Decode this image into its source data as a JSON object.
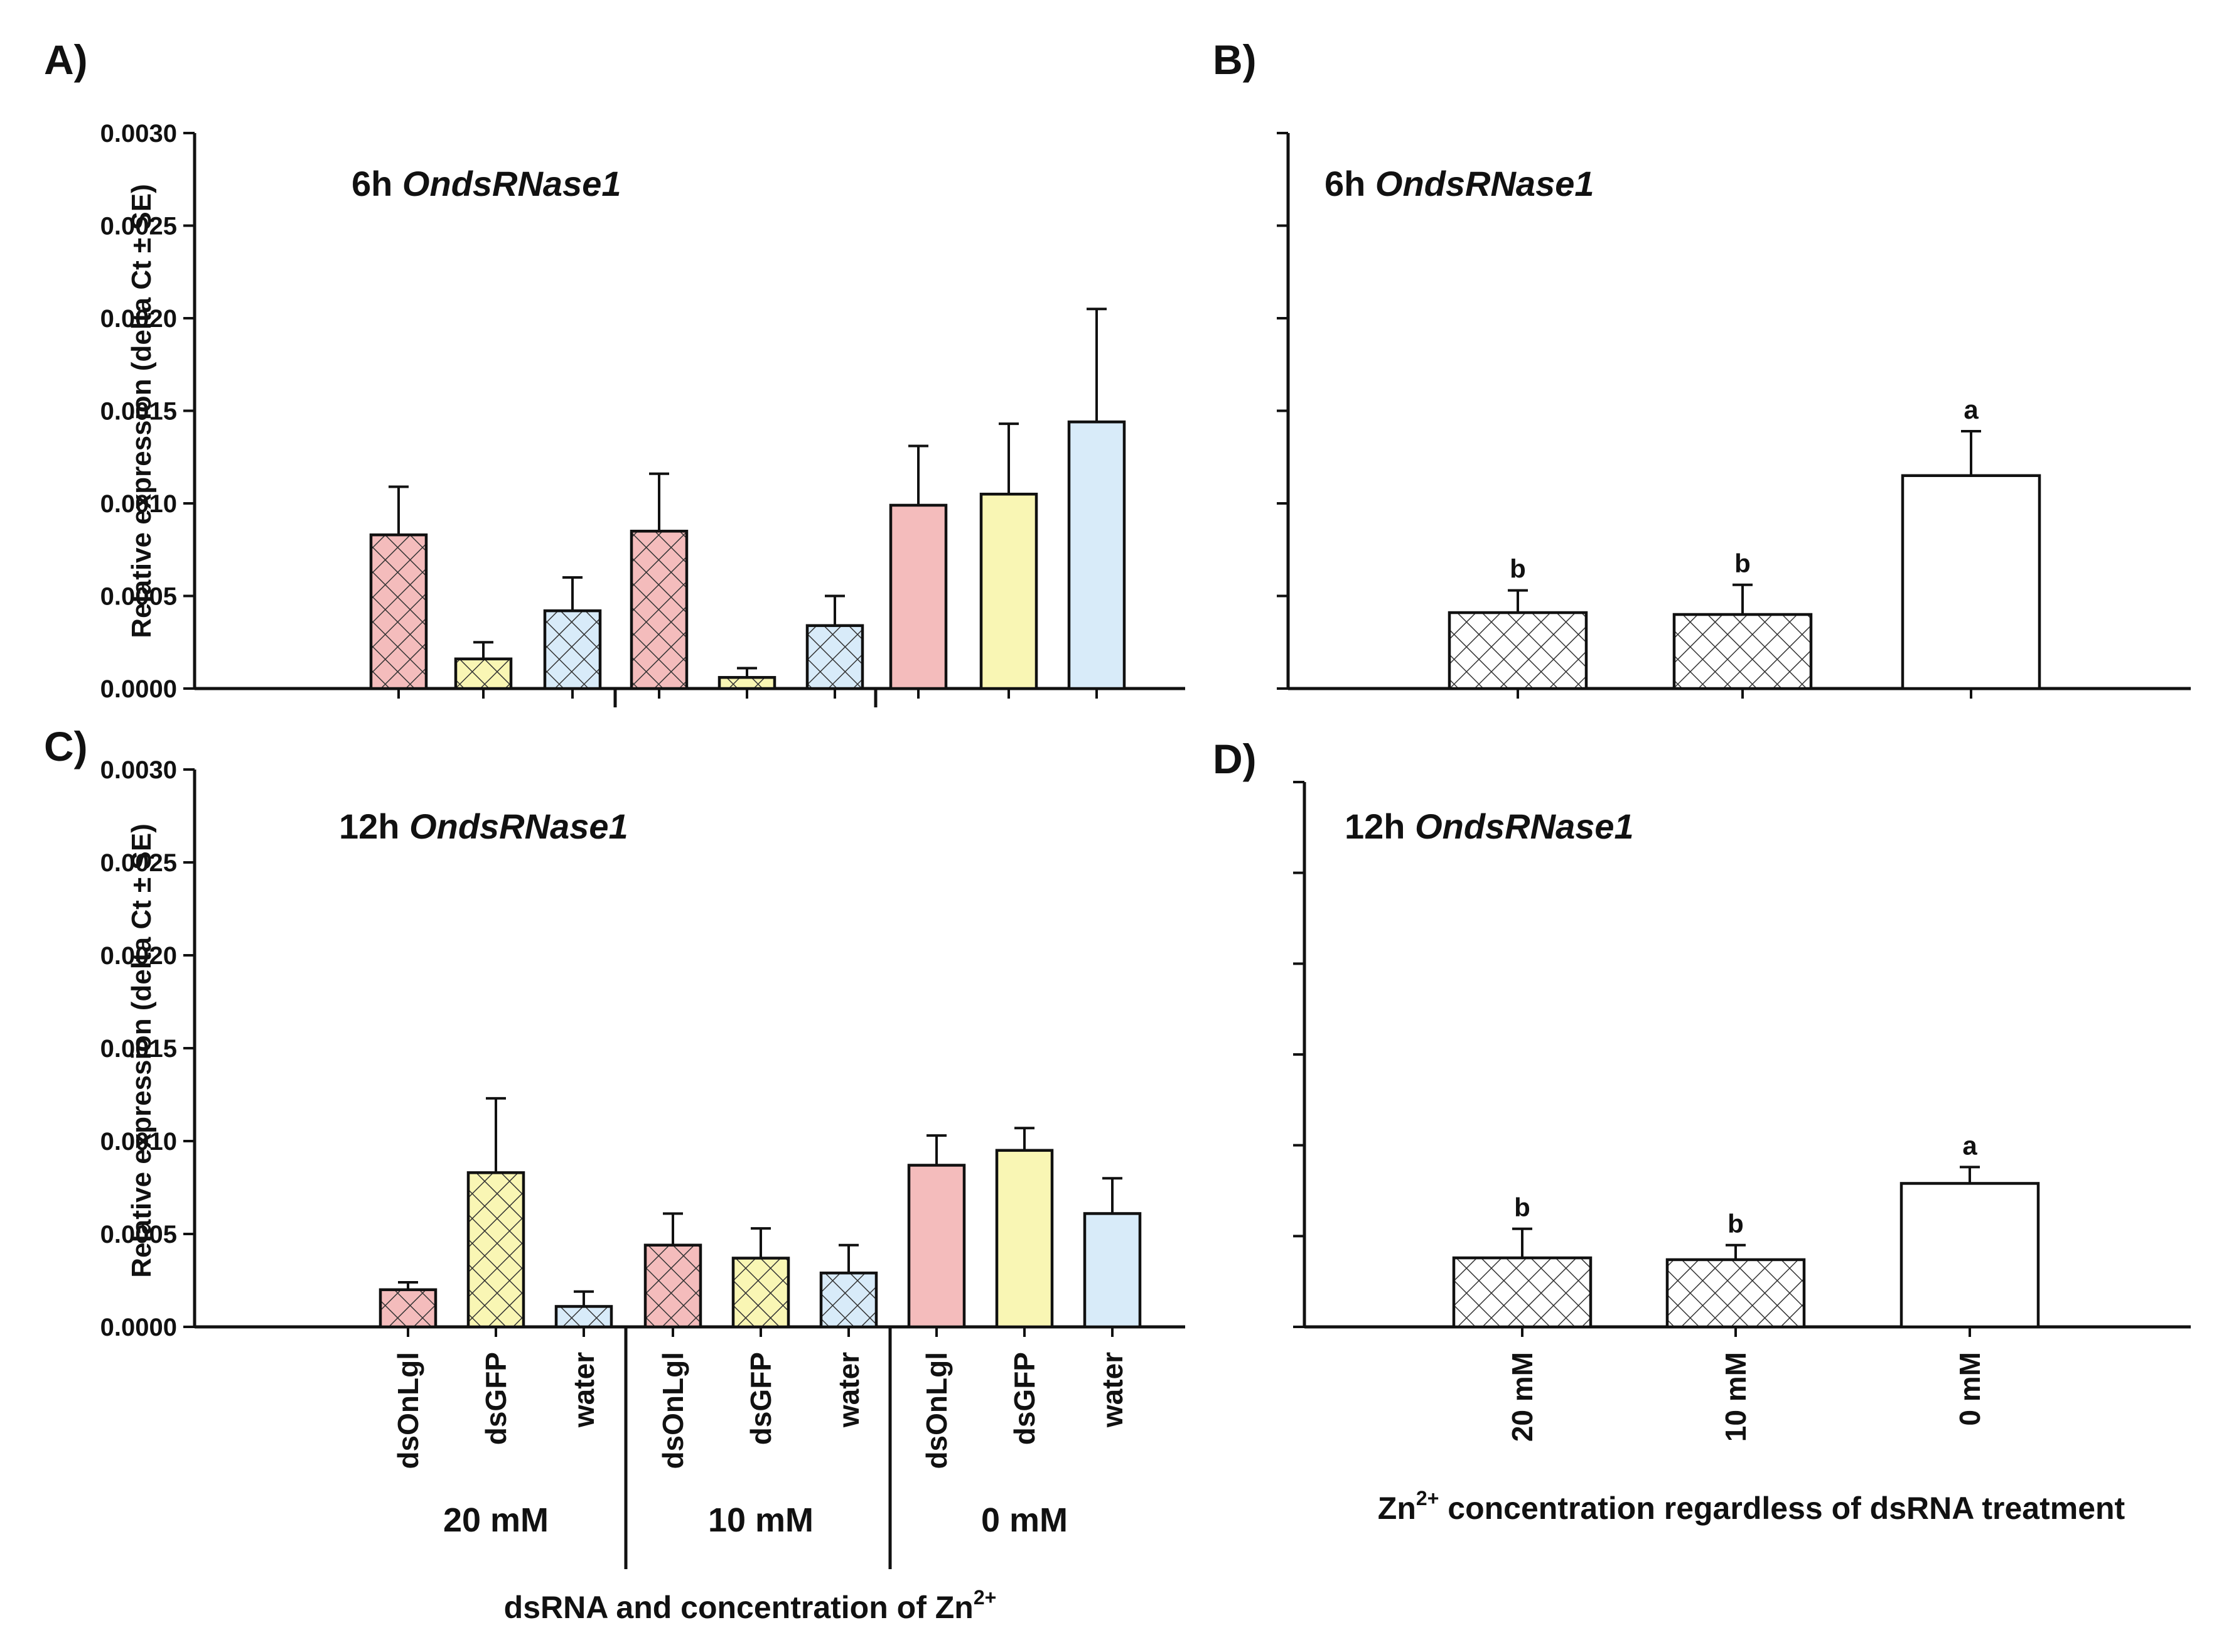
{
  "colors": {
    "dsOnLgl": "#f4bcbc",
    "dsGFP": "#f9f6b4",
    "water": "#d8ebf9",
    "pooled": "#ffffff",
    "hatch_line": "#333333"
  },
  "chart_data": [
    {
      "panel": "A)",
      "type": "bar",
      "title_prefix": "6h ",
      "title_gene": "OndsRNase1",
      "ylabel": "Relative expression (delta Ct ± SE)",
      "ylim": [
        0,
        0.003
      ],
      "yticks": [
        "0.0000",
        "0.0005",
        "0.0010",
        "0.0015",
        "0.0020",
        "0.0025",
        "0.0030"
      ],
      "categories": [
        "dsOnLgl",
        "dsGFP",
        "water",
        "dsOnLgl",
        "dsGFP",
        "water",
        "dsOnLgl",
        "dsGFP",
        "water"
      ],
      "groups": [
        "20 mM",
        "10 mM",
        "0 mM"
      ],
      "values": [
        0.00083,
        0.00016,
        0.00042,
        0.00085,
        6e-05,
        0.00034,
        0.00099,
        0.00105,
        0.00144
      ],
      "errors": [
        0.00026,
        9e-05,
        0.00018,
        0.00031,
        5e-05,
        0.00016,
        0.00032,
        0.00038,
        0.00061
      ],
      "hatched": [
        true,
        true,
        true,
        true,
        true,
        true,
        false,
        false,
        false
      ],
      "show_category_labels": false,
      "show_group_labels": false,
      "xlabel": ""
    },
    {
      "panel": "B)",
      "type": "bar",
      "title_prefix": "6h ",
      "title_gene": "OndsRNase1",
      "ylim": [
        0,
        0.003
      ],
      "categories": [
        "20 mM",
        "10 mM",
        "0 mM"
      ],
      "values": [
        0.00041,
        0.0004,
        0.00115
      ],
      "errors": [
        0.00012,
        0.00016,
        0.00024
      ],
      "significance": [
        "b",
        "b",
        "a"
      ],
      "hatched": [
        true,
        true,
        false
      ],
      "show_category_labels": false,
      "xlabel": ""
    },
    {
      "panel": "C)",
      "type": "bar",
      "title_prefix": "12h ",
      "title_gene": "OndsRNase1",
      "ylabel": "Relative expression (delta Ct ± SE)",
      "ylim": [
        0,
        0.003
      ],
      "yticks": [
        "0.0000",
        "0.0005",
        "0.0010",
        "0.0015",
        "0.0020",
        "0.0025",
        "0.0030"
      ],
      "categories": [
        "dsOnLgl",
        "dsGFP",
        "water",
        "dsOnLgl",
        "dsGFP",
        "water",
        "dsOnLgl",
        "dsGFP",
        "water"
      ],
      "groups": [
        "20 mM",
        "10 mM",
        "0 mM"
      ],
      "values": [
        0.0002,
        0.00083,
        0.00011,
        0.00044,
        0.00037,
        0.00029,
        0.00087,
        0.00095,
        0.00061
      ],
      "errors": [
        4e-05,
        0.0004,
        8e-05,
        0.00017,
        0.00016,
        0.00015,
        0.00016,
        0.00012,
        0.00019
      ],
      "hatched": [
        true,
        true,
        true,
        true,
        true,
        true,
        false,
        false,
        false
      ],
      "show_category_labels": true,
      "show_group_labels": true,
      "xlabel_text": "dsRNA and concentration of Zn",
      "xlabel_sup": "2+"
    },
    {
      "panel": "D)",
      "type": "bar",
      "title_prefix": "12h ",
      "title_gene": "OndsRNase1",
      "ylim": [
        0,
        0.003
      ],
      "categories": [
        "20 mM",
        "10 mM",
        "0 mM"
      ],
      "values": [
        0.00038,
        0.00037,
        0.00079
      ],
      "errors": [
        0.00016,
        8e-05,
        9e-05
      ],
      "significance": [
        "b",
        "b",
        "a"
      ],
      "hatched": [
        true,
        true,
        false
      ],
      "show_category_labels": true,
      "xlabel_prefix": "Zn",
      "xlabel_sup": "2+",
      "xlabel_suffix": " concentration regardless of dsRNA treatment"
    }
  ]
}
